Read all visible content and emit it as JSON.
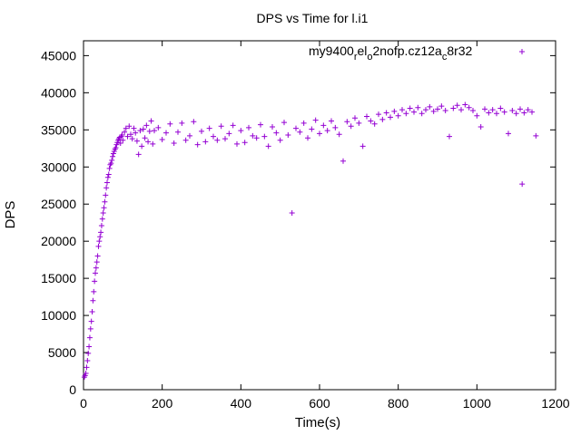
{
  "chart_data": {
    "type": "scatter",
    "title": "DPS vs Time for l.i1",
    "xlabel": "Time(s)",
    "ylabel": "DPS",
    "xlim": [
      0,
      1200
    ],
    "ylim": [
      0,
      47000
    ],
    "xticks": [
      0,
      200,
      400,
      600,
      800,
      1000,
      1200
    ],
    "yticks": [
      0,
      5000,
      10000,
      15000,
      20000,
      25000,
      30000,
      35000,
      40000,
      45000
    ],
    "grid": false,
    "legend_position": "top-right",
    "marker": "+",
    "color": "#9400D3",
    "series": [
      {
        "name": "my9400_rel_o2nofp.cz12a_c8r32",
        "legend_parts": [
          {
            "text": "my9400",
            "shift": "base"
          },
          {
            "text": "r",
            "shift": "sub"
          },
          {
            "text": "el",
            "shift": "base"
          },
          {
            "text": "o",
            "shift": "sub"
          },
          {
            "text": "2nofp.cz12a",
            "shift": "base"
          },
          {
            "text": "c",
            "shift": "sub"
          },
          {
            "text": "8r32",
            "shift": "base"
          }
        ],
        "points": [
          [
            2,
            1700
          ],
          [
            4,
            1900
          ],
          [
            6,
            2200
          ],
          [
            8,
            3000
          ],
          [
            10,
            3900
          ],
          [
            12,
            4900
          ],
          [
            14,
            5800
          ],
          [
            16,
            7000
          ],
          [
            18,
            8200
          ],
          [
            20,
            9200
          ],
          [
            22,
            10500
          ],
          [
            24,
            12000
          ],
          [
            26,
            13200
          ],
          [
            28,
            14600
          ],
          [
            30,
            15700
          ],
          [
            32,
            16400
          ],
          [
            34,
            17200
          ],
          [
            36,
            18000
          ],
          [
            38,
            19300
          ],
          [
            40,
            20000
          ],
          [
            42,
            20600
          ],
          [
            44,
            21200
          ],
          [
            46,
            22100
          ],
          [
            48,
            23000
          ],
          [
            50,
            23800
          ],
          [
            52,
            24500
          ],
          [
            54,
            25300
          ],
          [
            56,
            26200
          ],
          [
            58,
            27200
          ],
          [
            60,
            27900
          ],
          [
            62,
            28600
          ],
          [
            64,
            29000
          ],
          [
            66,
            29800
          ],
          [
            68,
            30300
          ],
          [
            70,
            30500
          ],
          [
            72,
            30900
          ],
          [
            74,
            31400
          ],
          [
            76,
            31800
          ],
          [
            78,
            32100
          ],
          [
            80,
            32400
          ],
          [
            82,
            32600
          ],
          [
            84,
            33000
          ],
          [
            86,
            33300
          ],
          [
            88,
            33600
          ],
          [
            90,
            33800
          ],
          [
            92,
            34000
          ],
          [
            94,
            33200
          ],
          [
            96,
            34100
          ],
          [
            98,
            34300
          ],
          [
            100,
            33600
          ],
          [
            104,
            34700
          ],
          [
            108,
            35200
          ],
          [
            112,
            34100
          ],
          [
            116,
            35500
          ],
          [
            120,
            34400
          ],
          [
            124,
            33800
          ],
          [
            128,
            35200
          ],
          [
            132,
            34600
          ],
          [
            136,
            33500
          ],
          [
            140,
            31700
          ],
          [
            144,
            34900
          ],
          [
            148,
            32800
          ],
          [
            152,
            35100
          ],
          [
            156,
            33900
          ],
          [
            160,
            35600
          ],
          [
            164,
            33400
          ],
          [
            168,
            34800
          ],
          [
            172,
            36200
          ],
          [
            176,
            33100
          ],
          [
            180,
            34900
          ],
          [
            190,
            35300
          ],
          [
            200,
            33700
          ],
          [
            210,
            34600
          ],
          [
            220,
            35800
          ],
          [
            230,
            33200
          ],
          [
            240,
            34700
          ],
          [
            250,
            35900
          ],
          [
            260,
            33600
          ],
          [
            270,
            34200
          ],
          [
            280,
            36100
          ],
          [
            290,
            33000
          ],
          [
            300,
            34800
          ],
          [
            310,
            33400
          ],
          [
            320,
            35200
          ],
          [
            330,
            34100
          ],
          [
            340,
            33600
          ],
          [
            350,
            35500
          ],
          [
            360,
            33800
          ],
          [
            370,
            34500
          ],
          [
            380,
            35600
          ],
          [
            390,
            33100
          ],
          [
            400,
            34900
          ],
          [
            410,
            33300
          ],
          [
            420,
            35300
          ],
          [
            430,
            34200
          ],
          [
            440,
            33900
          ],
          [
            450,
            35700
          ],
          [
            460,
            34100
          ],
          [
            470,
            32800
          ],
          [
            480,
            35400
          ],
          [
            490,
            34600
          ],
          [
            500,
            33600
          ],
          [
            510,
            36000
          ],
          [
            520,
            34300
          ],
          [
            530,
            23800
          ],
          [
            540,
            35200
          ],
          [
            550,
            34700
          ],
          [
            560,
            35900
          ],
          [
            570,
            33900
          ],
          [
            580,
            35100
          ],
          [
            590,
            36300
          ],
          [
            600,
            34500
          ],
          [
            610,
            35600
          ],
          [
            620,
            34900
          ],
          [
            630,
            36200
          ],
          [
            640,
            35300
          ],
          [
            650,
            34400
          ],
          [
            660,
            30800
          ],
          [
            670,
            36100
          ],
          [
            680,
            35500
          ],
          [
            690,
            36600
          ],
          [
            700,
            35900
          ],
          [
            710,
            32800
          ],
          [
            720,
            36800
          ],
          [
            730,
            36200
          ],
          [
            740,
            35800
          ],
          [
            750,
            37100
          ],
          [
            760,
            36400
          ],
          [
            770,
            37300
          ],
          [
            780,
            36700
          ],
          [
            790,
            37500
          ],
          [
            800,
            36900
          ],
          [
            810,
            37700
          ],
          [
            820,
            37200
          ],
          [
            830,
            37900
          ],
          [
            840,
            37400
          ],
          [
            850,
            38000
          ],
          [
            860,
            37200
          ],
          [
            870,
            37700
          ],
          [
            880,
            38100
          ],
          [
            890,
            37500
          ],
          [
            900,
            37800
          ],
          [
            910,
            38200
          ],
          [
            920,
            37600
          ],
          [
            930,
            34100
          ],
          [
            940,
            37900
          ],
          [
            950,
            38300
          ],
          [
            960,
            37700
          ],
          [
            970,
            38400
          ],
          [
            980,
            38000
          ],
          [
            990,
            37600
          ],
          [
            1000,
            36900
          ],
          [
            1010,
            35400
          ],
          [
            1020,
            37800
          ],
          [
            1030,
            37300
          ],
          [
            1040,
            37700
          ],
          [
            1050,
            37200
          ],
          [
            1060,
            37900
          ],
          [
            1070,
            37400
          ],
          [
            1080,
            34500
          ],
          [
            1090,
            37600
          ],
          [
            1100,
            37200
          ],
          [
            1110,
            37800
          ],
          [
            1115,
            27700
          ],
          [
            1120,
            37300
          ],
          [
            1130,
            37700
          ],
          [
            1140,
            37400
          ],
          [
            1150,
            34200
          ]
        ]
      }
    ]
  }
}
